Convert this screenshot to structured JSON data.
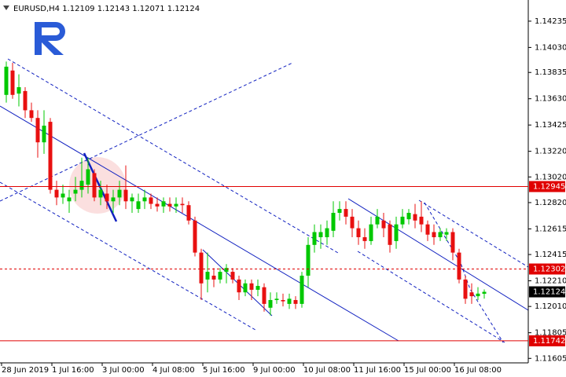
{
  "chart_data": {
    "type": "candlestick",
    "title": "EURUSD,H4  1.12109 1.12143 1.12071 1.12124",
    "categories": [
      "28 Jun 2019",
      null,
      null,
      null,
      null,
      null,
      null,
      null,
      "1 Jul 16:00",
      null,
      null,
      null,
      null,
      null,
      null,
      null,
      "3 Jul 00:00",
      null,
      null,
      null,
      null,
      null,
      null,
      null,
      "4 Jul 08:00",
      null,
      null,
      null,
      null,
      null,
      null,
      null,
      "5 Jul 16:00",
      null,
      null,
      null,
      null,
      null,
      null,
      null,
      "9 Jul 00:00",
      null,
      null,
      null,
      null,
      null,
      null,
      null,
      "10 Jul 08:00",
      null,
      null,
      null,
      null,
      null,
      null,
      null,
      "11 Jul 16:00",
      null,
      null,
      null,
      null,
      null,
      null,
      null,
      "15 Jul 00:00",
      null,
      null,
      null,
      null,
      null,
      null,
      null,
      "16 Jul 08:00",
      null,
      null,
      null,
      null
    ],
    "open": [
      1.1366,
      1.1385,
      1.1367,
      1.1369,
      1.1354,
      1.1348,
      1.1329,
      1.1345,
      1.1292,
      1.1286,
      1.1283,
      1.1289,
      1.1292,
      1.1296,
      1.1305,
      1.1286,
      1.1289,
      1.1283,
      1.1286,
      1.1292,
      1.1283,
      1.1277,
      1.1283,
      1.1286,
      1.1281,
      1.1279,
      1.1281,
      1.1279,
      1.1281,
      1.128,
      1.1268,
      1.1243,
      1.1222,
      1.1225,
      1.1222,
      1.1228,
      1.1228,
      1.1222,
      1.1212,
      1.1219,
      1.1214,
      1.1216,
      1.12,
      1.1206,
      1.1206,
      1.1203,
      1.1206,
      1.1203,
      1.1225,
      1.1249,
      1.1255,
      1.1255,
      1.126,
      1.1274,
      1.1277,
      1.1271,
      1.1262,
      1.1255,
      1.1252,
      1.1265,
      1.1268,
      1.1265,
      1.1252,
      1.1265,
      1.1269,
      1.1273,
      1.1271,
      1.1265,
      1.1259,
      1.1255,
      1.1257,
      1.1259,
      1.1243,
      1.1222,
      1.1212,
      1.1209,
      1.12109
    ],
    "high": [
      1.1392,
      1.1391,
      1.1382,
      1.1372,
      1.136,
      1.1354,
      1.1354,
      1.1348,
      1.1299,
      1.1296,
      1.1292,
      1.1302,
      1.1317,
      1.1317,
      1.1308,
      1.1299,
      1.1296,
      1.1292,
      1.1299,
      1.1311,
      1.1289,
      1.1289,
      1.1292,
      1.1289,
      1.1286,
      1.1286,
      1.1286,
      1.1286,
      1.1286,
      1.1283,
      1.1271,
      1.1246,
      1.1243,
      1.1231,
      1.1231,
      1.1234,
      1.1231,
      1.1225,
      1.1222,
      1.1222,
      1.1222,
      1.1219,
      1.1212,
      1.1212,
      1.1211,
      1.1211,
      1.1209,
      1.1228,
      1.1255,
      1.1265,
      1.1265,
      1.1268,
      1.1283,
      1.1283,
      1.1283,
      1.1277,
      1.1268,
      1.1262,
      1.1271,
      1.1277,
      1.1274,
      1.1268,
      1.1271,
      1.1277,
      1.1277,
      1.1281,
      1.1283,
      1.1268,
      1.1265,
      1.1262,
      1.1262,
      1.1262,
      1.1246,
      1.1225,
      1.1219,
      1.1216,
      1.12143
    ],
    "low": [
      1.136,
      1.1363,
      1.1357,
      1.1348,
      1.1345,
      1.1317,
      1.132,
      1.1289,
      1.128,
      1.1281,
      1.1274,
      1.1283,
      1.1286,
      1.1289,
      1.1283,
      1.128,
      1.1277,
      1.1274,
      1.128,
      1.1277,
      1.1274,
      1.1274,
      1.1277,
      1.1277,
      1.1275,
      1.1274,
      1.1275,
      1.1274,
      1.1274,
      1.1265,
      1.124,
      1.1206,
      1.1212,
      1.1216,
      1.1219,
      1.1219,
      1.1219,
      1.1206,
      1.1209,
      1.1206,
      1.1209,
      1.1197,
      1.1194,
      1.1203,
      1.1201,
      1.1199,
      1.1199,
      1.12,
      1.1216,
      1.1243,
      1.1246,
      1.1249,
      1.1255,
      1.1268,
      1.1265,
      1.1255,
      1.1249,
      1.1246,
      1.1249,
      1.1262,
      1.1255,
      1.1243,
      1.1246,
      1.1262,
      1.1265,
      1.1262,
      1.1259,
      1.1252,
      1.1249,
      1.1252,
      1.1252,
      1.1237,
      1.1219,
      1.1203,
      1.1203,
      1.1206,
      1.12071
    ],
    "close": [
      1.1388,
      1.1366,
      1.1372,
      1.1354,
      1.1348,
      1.1329,
      1.1342,
      1.1292,
      1.1286,
      1.1289,
      1.1286,
      1.1292,
      1.1299,
      1.1308,
      1.1286,
      1.1292,
      1.1283,
      1.1286,
      1.1292,
      1.1283,
      1.1286,
      1.1283,
      1.1286,
      1.1281,
      1.1279,
      1.1283,
      1.1279,
      1.1281,
      1.128,
      1.1268,
      1.1243,
      1.1219,
      1.1228,
      1.1222,
      1.1228,
      1.1231,
      1.1222,
      1.1212,
      1.1219,
      1.1214,
      1.1217,
      1.1203,
      1.1206,
      1.1207,
      1.1205,
      1.1207,
      1.1203,
      1.1225,
      1.1249,
      1.1259,
      1.1259,
      1.1262,
      1.1274,
      1.1277,
      1.1271,
      1.1262,
      1.1255,
      1.1252,
      1.1265,
      1.1271,
      1.1262,
      1.1249,
      1.1265,
      1.1271,
      1.1274,
      1.1268,
      1.1265,
      1.1257,
      1.1255,
      1.1259,
      1.1259,
      1.1243,
      1.1222,
      1.1207,
      1.1209,
      1.1211,
      1.12124
    ],
    "up_color": "#00c800",
    "down_color": "#e81010",
    "ylim": [
      1.1157,
      1.144
    ],
    "yticks": [
      1.14235,
      {
        "value": 1.1403,
        "label": "1.14030"
      },
      1.13835,
      {
        "value": 1.1363,
        "label": "1.13630"
      },
      1.13425,
      {
        "value": 1.1322,
        "label": "1.13220"
      },
      {
        "value": 1.1302,
        "label": "1.13020"
      },
      {
        "value": 1.1282,
        "label": "1.12820"
      },
      1.12615,
      1.12415,
      {
        "value": 1.1221,
        "label": "1.12210"
      },
      {
        "value": 1.1201,
        "label": "1.12010"
      },
      1.11805,
      1.11605
    ],
    "levels": [
      {
        "value": 1.12945,
        "color": "#e00000",
        "dashed": false
      },
      {
        "value": 1.12302,
        "color": "#e00000",
        "dashed": true
      },
      {
        "value": 1.11742,
        "color": "#e00000",
        "dashed": false
      }
    ],
    "last_price": 1.12124
  }
}
